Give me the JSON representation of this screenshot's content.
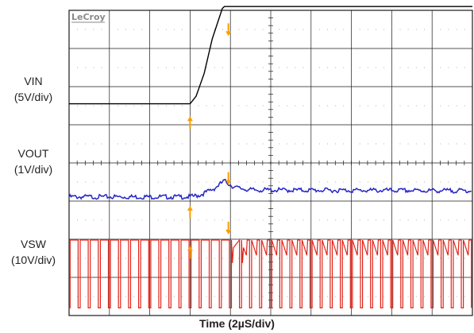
{
  "chart_data": {
    "type": "line",
    "brand": "LeCroy",
    "xlabel": "Time (2µS/div)",
    "grid": true,
    "divisions": {
      "x": 10,
      "y": 8
    },
    "x_unit_per_div": "2µS",
    "xlim": [
      0,
      20
    ],
    "series": [
      {
        "name": "VIN",
        "scale": "(5V/div)",
        "color": "#000000",
        "description": "Input voltage steps from low level to high level, rising edge between about 6.0µs and 7.6µs",
        "x": [
          0,
          6.0,
          6.3,
          6.7,
          7.1,
          7.6,
          7.7,
          20
        ],
        "y": [
          0,
          0,
          0.2,
          0.8,
          1.7,
          2.5,
          2.55,
          2.55
        ]
      },
      {
        "name": "VOUT",
        "scale": "(1V/div)",
        "color": "#2424c8",
        "description": "Output voltage with small overshoot near 7.7µs then settles slightly above initial level",
        "x": [
          0,
          6.0,
          6.5,
          7.2,
          7.7,
          8.2,
          9.0,
          20
        ],
        "y": [
          0,
          0,
          0.05,
          0.22,
          0.42,
          0.25,
          0.18,
          0.16
        ]
      },
      {
        "name": "VSW",
        "scale": "(10V/div)",
        "color": "#e0241a",
        "description": "Switch node square wave, period ~0.5µs, amplitude ~1.95 div; ringing burst after 7.7µs",
        "period_us": 0.5,
        "duty": 0.8,
        "amplitude_div": 1.95
      }
    ],
    "markers": [
      {
        "label": "VIN trigger",
        "color": "#f5a000",
        "direction": "up",
        "x_us": 6.0,
        "channel": "VIN"
      },
      {
        "label": "VIN settle",
        "color": "#f5a000",
        "direction": "down",
        "x_us": 7.9,
        "channel": "VIN"
      },
      {
        "label": "VOUT trigger",
        "color": "#f5a000",
        "direction": "up",
        "x_us": 6.0,
        "channel": "VOUT"
      },
      {
        "label": "VOUT settle",
        "color": "#f5a000",
        "direction": "down",
        "x_us": 7.9,
        "channel": "VOUT"
      },
      {
        "label": "VSW trigger",
        "color": "#f5a000",
        "direction": "up",
        "x_us": 6.0,
        "channel": "VSW"
      },
      {
        "label": "VSW settle",
        "color": "#f5a000",
        "direction": "down",
        "x_us": 7.9,
        "channel": "VSW"
      }
    ]
  }
}
